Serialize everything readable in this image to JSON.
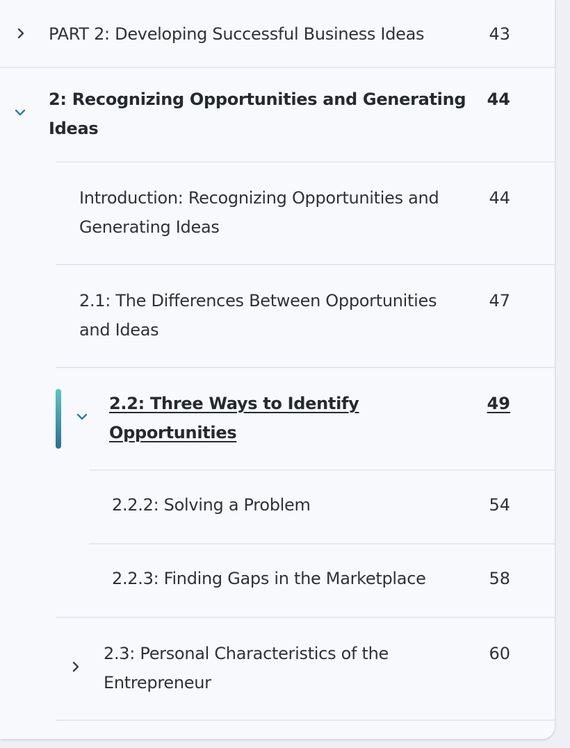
{
  "toc": {
    "items": [
      {
        "id": "part2",
        "title": "PART 2: Developing Successful Business Ideas",
        "page": "43",
        "icon": "chevron-right-icon"
      },
      {
        "id": "ch2",
        "title": "2: Recognizing Opportunities and Generating Ideas",
        "page": "44",
        "icon": "chevron-down-icon"
      },
      {
        "id": "intro",
        "title": "Introduction: Recognizing Opportunities and Generating Ideas",
        "page": "44"
      },
      {
        "id": "s21",
        "title": "2.1: The Differences Between Opportunities and Ideas",
        "page": "47"
      },
      {
        "id": "s22",
        "title": "2.2: Three Ways to Identify Opportunities",
        "page": "49",
        "icon": "chevron-down-icon",
        "active": true
      },
      {
        "id": "s222",
        "title": "2.2.2: Solving a Problem",
        "page": "54"
      },
      {
        "id": "s223",
        "title": "2.2.3: Finding Gaps in the Marketplace",
        "page": "58"
      },
      {
        "id": "s23",
        "title": "2.3: Personal Characteristics of the Entrepreneur",
        "page": "60",
        "icon": "chevron-right-icon"
      }
    ]
  },
  "colors": {
    "accent": "#2a7fa0",
    "chevron_dark": "#3d4147",
    "active_bar_top": "#5ec4c0",
    "active_bar_bottom": "#2b6f96"
  }
}
